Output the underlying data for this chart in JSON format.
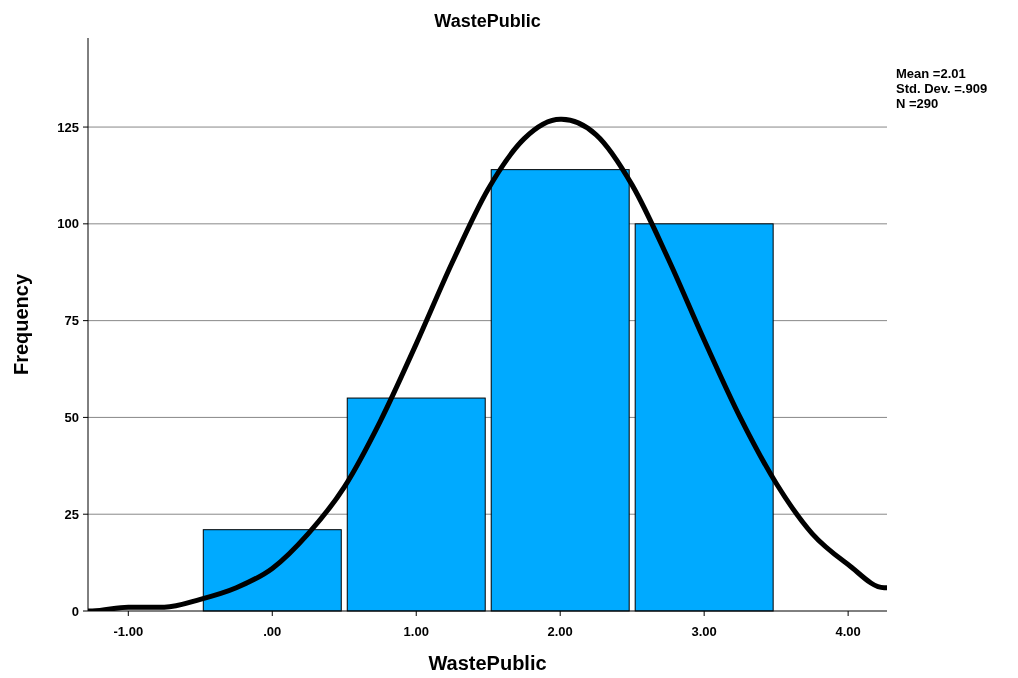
{
  "chart_data": {
    "type": "histogram",
    "title": "WastePublic",
    "xlabel": "WastePublic",
    "ylabel": "Frequency",
    "bins": [
      -0.5,
      0.5,
      1.5,
      2.5,
      3.5
    ],
    "values": [
      21,
      55,
      114,
      100
    ],
    "color": "#00aaff",
    "series": [
      {
        "type": "line",
        "color": "#000000",
        "x": [
          -1.28,
          -1.25,
          -1,
          -0.75,
          -0.5,
          -0.25,
          0,
          0.25,
          0.5,
          0.75,
          1,
          1.25,
          1.5,
          1.75,
          2,
          2.01,
          2.25,
          2.5,
          2.75,
          3,
          3.25,
          3.5,
          3.75,
          4,
          4.25,
          4.27
        ],
        "values": [
          0,
          0,
          1,
          1,
          3,
          6,
          11,
          20,
          32,
          49,
          69,
          90,
          109,
          122,
          127,
          127,
          123,
          110,
          91,
          70,
          50,
          33,
          20,
          12,
          6,
          6
        ]
      }
    ],
    "xlim": [
      -1.28,
      4.27
    ],
    "xticks": [
      {
        "value": -1,
        "label": "-1.00"
      },
      {
        "value": 0,
        "label": ".00"
      },
      {
        "value": 1,
        "label": "1.00"
      },
      {
        "value": 2,
        "label": "2.00"
      },
      {
        "value": 3,
        "label": "3.00"
      },
      {
        "value": 4,
        "label": "4.00"
      }
    ],
    "ylim": [
      0,
      148
    ],
    "yticks": [
      0,
      25,
      50,
      75,
      100,
      125
    ],
    "grid": "y",
    "line_style": "solid",
    "marker": "none",
    "annotations": [
      "Mean =2.01",
      "Std. Dev. =.909",
      "N =290"
    ]
  }
}
